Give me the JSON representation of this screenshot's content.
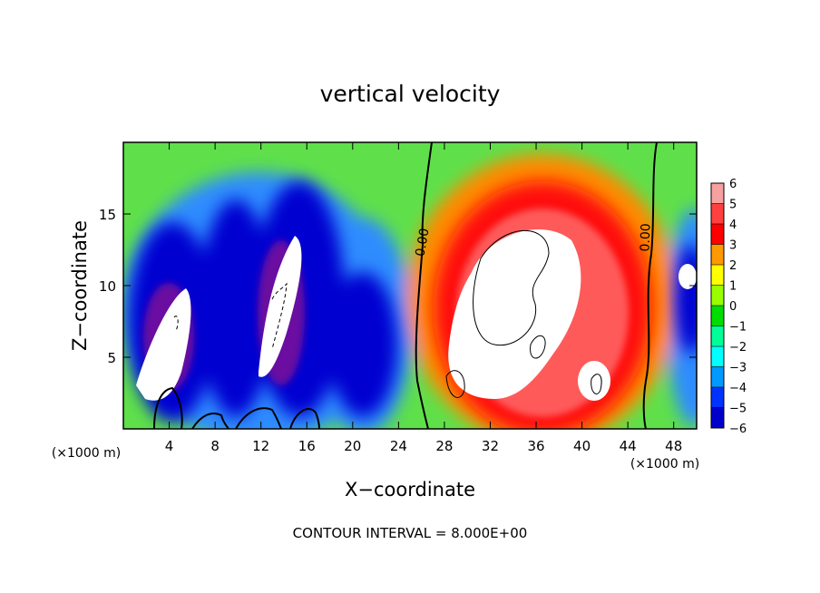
{
  "chart_data": {
    "type": "heatmap",
    "title": "vertical velocity",
    "xlabel": "X−coordinate",
    "ylabel": "Z−coordinate",
    "x_unit_left": "(×1000 m)",
    "x_unit_right": "(×1000 m)",
    "xlim": [
      0,
      50
    ],
    "ylim": [
      0,
      20
    ],
    "x_ticks": [
      4,
      8,
      12,
      16,
      20,
      24,
      28,
      32,
      36,
      40,
      44,
      48
    ],
    "y_ticks": [
      5,
      10,
      15
    ],
    "colorbar": {
      "ticks": [
        6,
        5,
        4,
        3,
        2,
        1,
        0,
        -1,
        -2,
        -3,
        -4,
        -5,
        -6
      ],
      "tick_labels": [
        "6",
        "5",
        "4",
        "3",
        "2",
        "1",
        "0",
        "−1",
        "−2",
        "−3",
        "−4",
        "−5",
        "−6"
      ],
      "colors": [
        "#f7a0a0",
        "#ff4040",
        "#ff0000",
        "#ff9900",
        "#ffff00",
        "#99ff00",
        "#00dd00",
        "#00ff99",
        "#00ffff",
        "#0099ff",
        "#0033ff",
        "#0000cc",
        "#660099"
      ]
    },
    "contour_labels": [
      {
        "text": "0.00",
        "x": 26.5,
        "y": 12.8
      },
      {
        "text": "0.00",
        "x": 45.5,
        "y": 13.5
      }
    ],
    "footer": "CONTOUR INTERVAL = 8.000E+00"
  }
}
